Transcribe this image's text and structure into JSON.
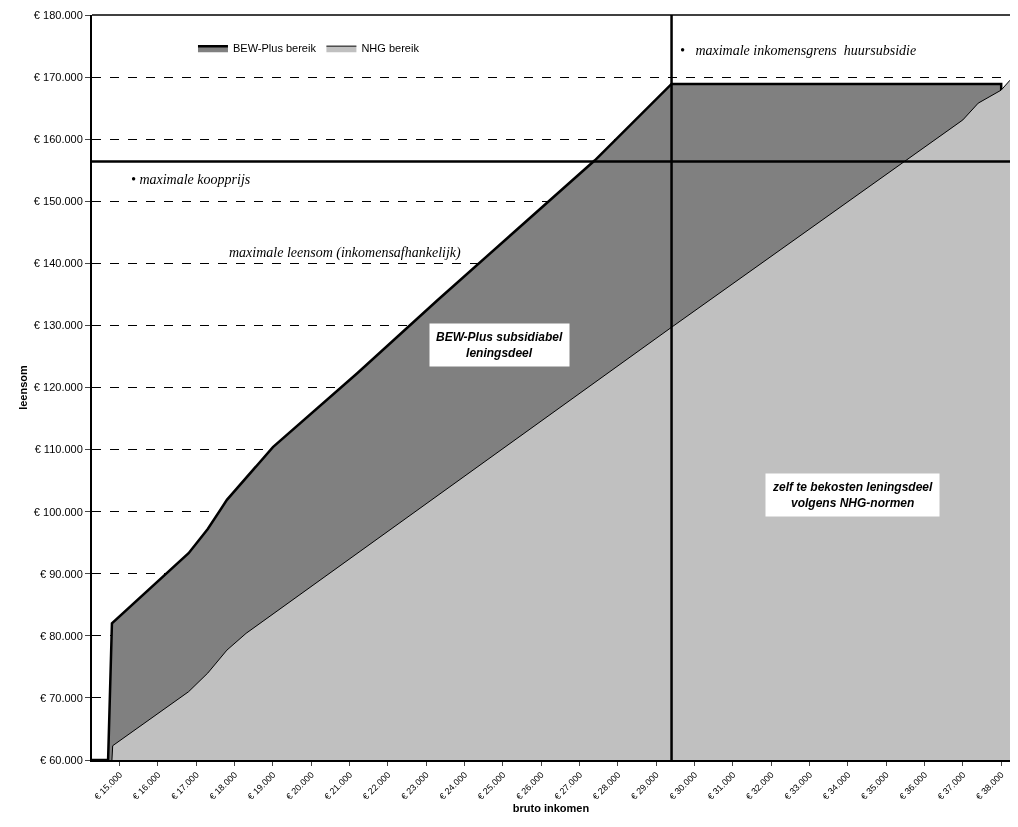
{
  "chart_data": {
    "type": "area",
    "xlabel": "bruto inkomen",
    "ylabel": "leensom",
    "series": [
      {
        "name": "BEW-Plus bereik",
        "color": "#808080",
        "x": [
          14280,
          14700,
          14800,
          16800,
          17300,
          17800,
          19000,
          21200,
          23300,
          27400,
          29400,
          38000,
          38000
        ],
        "values": [
          60000,
          60000,
          82000,
          93300,
          97200,
          101900,
          110400,
          122300,
          134100,
          156600,
          168900,
          168900,
          167900
        ]
      },
      {
        "name": "NHG bereik",
        "color": "#c0c0c0",
        "x": [
          14800,
          14820,
          16800,
          17300,
          17800,
          18300,
          29400,
          37000,
          37400,
          38000,
          38230
        ],
        "values": [
          60000,
          62300,
          71000,
          74000,
          77700,
          80400,
          129700,
          163100,
          165800,
          167900,
          169500
        ]
      }
    ],
    "xlim": [
      14280,
      38230
    ],
    "xticks": [
      {
        "value": 15000,
        "label": "€ 15.000"
      },
      {
        "value": 16000,
        "label": "€ 16.000"
      },
      {
        "value": 17000,
        "label": "€ 17.000"
      },
      {
        "value": 18000,
        "label": "€ 18.000"
      },
      {
        "value": 19000,
        "label": "€ 19.000"
      },
      {
        "value": 20000,
        "label": "€ 20.000"
      },
      {
        "value": 21000,
        "label": "€ 21.000"
      },
      {
        "value": 22000,
        "label": "€ 22.000"
      },
      {
        "value": 23000,
        "label": "€ 23.000"
      },
      {
        "value": 24000,
        "label": "€ 24.000"
      },
      {
        "value": 25000,
        "label": "€ 25.000"
      },
      {
        "value": 26000,
        "label": "€ 26.000"
      },
      {
        "value": 27000,
        "label": "€ 27.000"
      },
      {
        "value": 28000,
        "label": "€ 28.000"
      },
      {
        "value": 29000,
        "label": "€ 29.000"
      },
      {
        "value": 30000,
        "label": "€ 30.000"
      },
      {
        "value": 31000,
        "label": "€ 31.000"
      },
      {
        "value": 32000,
        "label": "€ 32.000"
      },
      {
        "value": 33000,
        "label": "€ 33.000"
      },
      {
        "value": 34000,
        "label": "€ 34.000"
      },
      {
        "value": 35000,
        "label": "€ 35.000"
      },
      {
        "value": 36000,
        "label": "€ 36.000"
      },
      {
        "value": 37000,
        "label": "€ 37.000"
      },
      {
        "value": 38000,
        "label": "€ 38.000"
      }
    ],
    "ylim": [
      60000,
      180000
    ],
    "yticks": [
      {
        "value": 60000,
        "label": "€ 60.000"
      },
      {
        "value": 70000,
        "label": "€ 70.000"
      },
      {
        "value": 80000,
        "label": "€ 80.000"
      },
      {
        "value": 90000,
        "label": "€ 90.000"
      },
      {
        "value": 100000,
        "label": "€ 100.000"
      },
      {
        "value": 110000,
        "label": "€ 110.000"
      },
      {
        "value": 120000,
        "label": "€ 120.000"
      },
      {
        "value": 130000,
        "label": "€ 130.000"
      },
      {
        "value": 140000,
        "label": "€ 140.000"
      },
      {
        "value": 150000,
        "label": "€ 150.000"
      },
      {
        "value": 160000,
        "label": "€ 160.000"
      },
      {
        "value": 170000,
        "label": "€ 170.000"
      },
      {
        "value": 180000,
        "label": "€ 180.000"
      }
    ],
    "grid": "y",
    "legend": "top left",
    "ref_lines": [
      {
        "axis": "y",
        "value": 156400,
        "label": "• maximale koopprijs",
        "color": "#000000"
      },
      {
        "axis": "x",
        "value": 29400,
        "label": "•   maximale inkomensgrens  huursubsidie",
        "color": "#000000"
      }
    ],
    "annotations": [
      "maximale leensom (inkomensafhankelijk)",
      "BEW-Plus subsidiabel leningsdeel",
      "zelf te bekosten leningsdeel volgens NHG-normen"
    ]
  }
}
